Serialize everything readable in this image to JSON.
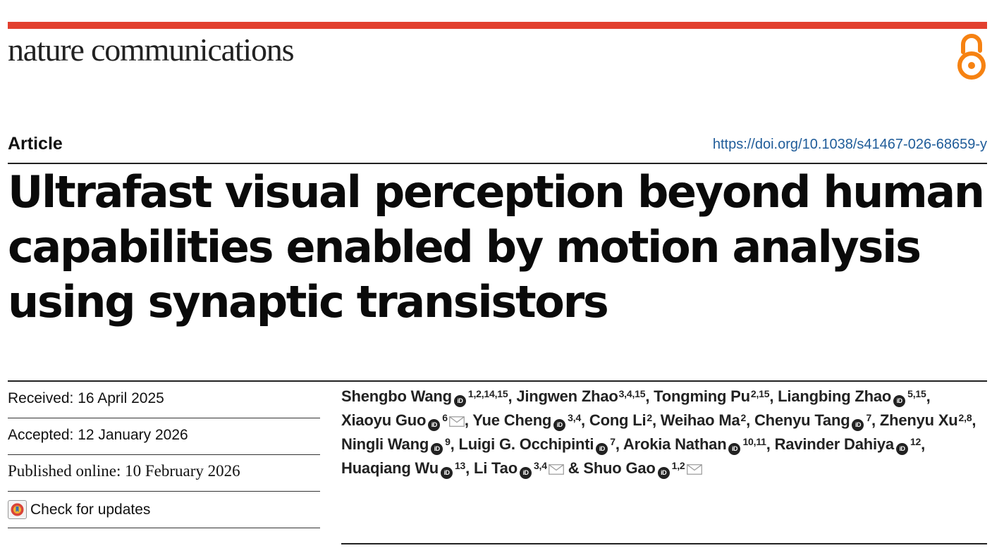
{
  "header": {
    "journal": "nature communications",
    "accent_color": "#e2402f",
    "open_access_icon": "open-access-icon",
    "open_access_color": "#f68212"
  },
  "article": {
    "type": "Article",
    "doi": "https://doi.org/10.1038/s41467-026-68659-y",
    "title": "Ultrafast visual perception beyond human capabilities enabled by motion analysis using synaptic transistors"
  },
  "meta": {
    "received": "Received: 16 April 2025",
    "accepted": "Accepted: 12 January 2026",
    "published": "Published online: 10 February 2026",
    "check_updates": "Check for updates",
    "check_updates_icon": "check-for-updates-icon"
  },
  "authors": [
    {
      "name": "Shengbo Wang",
      "orcid": true,
      "aff": "1,2,14,15",
      "mail": false,
      "sep": ","
    },
    {
      "name": "Jingwen Zhao",
      "orcid": false,
      "aff": "3,4,15",
      "mail": false,
      "sep": ","
    },
    {
      "name": "Tongming Pu",
      "orcid": false,
      "aff": "2,15",
      "mail": false,
      "sep": ","
    },
    {
      "name": "Liangbing Zhao",
      "orcid": true,
      "aff": "5,15",
      "mail": false,
      "sep": ","
    },
    {
      "name": "Xiaoyu Guo",
      "orcid": true,
      "aff": "6",
      "mail": true,
      "sep": ","
    },
    {
      "name": "Yue Cheng",
      "orcid": true,
      "aff": "3,4",
      "mail": false,
      "sep": ","
    },
    {
      "name": "Cong Li",
      "orcid": false,
      "aff": "2",
      "mail": false,
      "sep": ","
    },
    {
      "name": "Weihao Ma",
      "orcid": false,
      "aff": "2",
      "mail": false,
      "sep": ","
    },
    {
      "name": "Chenyu Tang",
      "orcid": true,
      "aff": "7",
      "mail": false,
      "sep": ","
    },
    {
      "name": "Zhenyu Xu",
      "orcid": false,
      "aff": "2,8",
      "mail": false,
      "sep": ","
    },
    {
      "name": "Ningli Wang",
      "orcid": true,
      "aff": "9",
      "mail": false,
      "sep": ","
    },
    {
      "name": "Luigi G. Occhipinti",
      "orcid": true,
      "aff": "7",
      "mail": false,
      "sep": ","
    },
    {
      "name": "Arokia Nathan",
      "orcid": true,
      "aff": "10,11",
      "mail": false,
      "sep": ","
    },
    {
      "name": "Ravinder Dahiya",
      "orcid": true,
      "aff": "12",
      "mail": false,
      "sep": ","
    },
    {
      "name": "Huaqiang Wu",
      "orcid": true,
      "aff": "13",
      "mail": false,
      "sep": ","
    },
    {
      "name": "Li Tao",
      "orcid": true,
      "aff": "3,4",
      "mail": true,
      "sep": " &"
    },
    {
      "name": "Shuo Gao",
      "orcid": true,
      "aff": "1,2",
      "mail": true,
      "sep": ""
    }
  ],
  "icons": {
    "orcid": "orcid-icon",
    "orcid_text": "iD",
    "mail": "envelope-icon"
  }
}
